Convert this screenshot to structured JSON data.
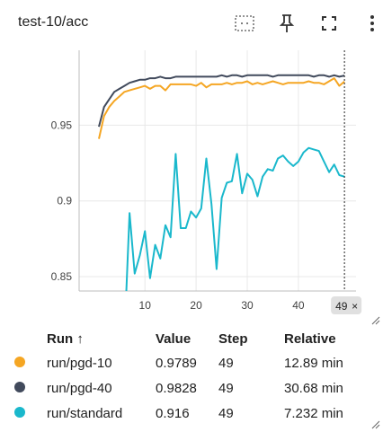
{
  "card": {
    "title": "test-10/acc"
  },
  "toolbar": {
    "icons": [
      "fit-domain-icon",
      "pin-icon",
      "fullscreen-icon",
      "more-vert-icon"
    ]
  },
  "chart_data": {
    "type": "line",
    "x_ticks": [
      "10",
      "20",
      "30",
      "40"
    ],
    "y_ticks": [
      "0.85",
      "0.9",
      "0.95"
    ],
    "xlim": [
      0,
      50
    ],
    "ylim": [
      0.84,
      0.99
    ],
    "cursor_step": 49,
    "cursor_label": "49",
    "series": [
      {
        "name": "run/pgd-10",
        "color": "#f5a623",
        "x": [
          1,
          2,
          3,
          4,
          5,
          6,
          7,
          8,
          9,
          10,
          11,
          12,
          13,
          14,
          15,
          16,
          17,
          18,
          19,
          20,
          21,
          22,
          23,
          24,
          25,
          26,
          27,
          28,
          29,
          30,
          31,
          32,
          33,
          34,
          35,
          36,
          37,
          38,
          39,
          40,
          41,
          42,
          43,
          44,
          45,
          46,
          47,
          48,
          49
        ],
        "y": [
          0.941,
          0.956,
          0.962,
          0.966,
          0.969,
          0.972,
          0.973,
          0.974,
          0.975,
          0.976,
          0.974,
          0.976,
          0.976,
          0.973,
          0.977,
          0.977,
          0.977,
          0.977,
          0.977,
          0.976,
          0.978,
          0.975,
          0.977,
          0.977,
          0.977,
          0.978,
          0.977,
          0.978,
          0.978,
          0.979,
          0.977,
          0.978,
          0.977,
          0.978,
          0.979,
          0.978,
          0.977,
          0.978,
          0.978,
          0.978,
          0.978,
          0.979,
          0.978,
          0.978,
          0.977,
          0.979,
          0.981,
          0.976,
          0.9789
        ]
      },
      {
        "name": "run/pgd-40",
        "color": "#414a5c",
        "x": [
          1,
          2,
          3,
          4,
          5,
          6,
          7,
          8,
          9,
          10,
          11,
          12,
          13,
          14,
          15,
          16,
          17,
          18,
          19,
          20,
          21,
          22,
          23,
          24,
          25,
          26,
          27,
          28,
          29,
          30,
          31,
          32,
          33,
          34,
          35,
          36,
          37,
          38,
          39,
          40,
          41,
          42,
          43,
          44,
          45,
          46,
          47,
          48,
          49
        ],
        "y": [
          0.949,
          0.962,
          0.967,
          0.972,
          0.974,
          0.976,
          0.978,
          0.979,
          0.98,
          0.98,
          0.981,
          0.981,
          0.982,
          0.981,
          0.981,
          0.982,
          0.982,
          0.982,
          0.982,
          0.982,
          0.982,
          0.982,
          0.982,
          0.982,
          0.983,
          0.982,
          0.983,
          0.983,
          0.982,
          0.983,
          0.983,
          0.983,
          0.983,
          0.983,
          0.982,
          0.983,
          0.983,
          0.983,
          0.983,
          0.983,
          0.983,
          0.983,
          0.982,
          0.983,
          0.983,
          0.982,
          0.983,
          0.982,
          0.9828
        ]
      },
      {
        "name": "run/standard",
        "color": "#1ab8cc",
        "x": [
          6,
          7,
          8,
          9,
          10,
          11,
          12,
          13,
          14,
          15,
          16,
          17,
          18,
          19,
          20,
          21,
          22,
          23,
          24,
          25,
          26,
          27,
          28,
          29,
          30,
          31,
          32,
          33,
          34,
          35,
          36,
          37,
          38,
          39,
          40,
          41,
          42,
          43,
          44,
          45,
          46,
          47,
          48,
          49
        ],
        "y": [
          0.81,
          0.892,
          0.852,
          0.864,
          0.88,
          0.849,
          0.871,
          0.862,
          0.884,
          0.876,
          0.931,
          0.882,
          0.882,
          0.893,
          0.889,
          0.895,
          0.928,
          0.898,
          0.855,
          0.902,
          0.912,
          0.913,
          0.931,
          0.905,
          0.918,
          0.914,
          0.903,
          0.916,
          0.921,
          0.92,
          0.928,
          0.93,
          0.926,
          0.923,
          0.926,
          0.932,
          0.935,
          0.934,
          0.933,
          0.926,
          0.919,
          0.924,
          0.917,
          0.916
        ]
      }
    ]
  },
  "footer": {
    "cursor_close": "×"
  },
  "table": {
    "headers": {
      "run": "Run ↑",
      "value": "Value",
      "step": "Step",
      "relative": "Relative"
    },
    "rows": [
      {
        "color": "#f5a623",
        "run": "run/pgd-10",
        "value": "0.9789",
        "step": "49",
        "relative": "12.89 min"
      },
      {
        "color": "#414a5c",
        "run": "run/pgd-40",
        "value": "0.9828",
        "step": "49",
        "relative": "30.68 min"
      },
      {
        "color": "#1ab8cc",
        "run": "run/standard",
        "value": "0.916",
        "step": "49",
        "relative": "7.232 min"
      }
    ]
  }
}
